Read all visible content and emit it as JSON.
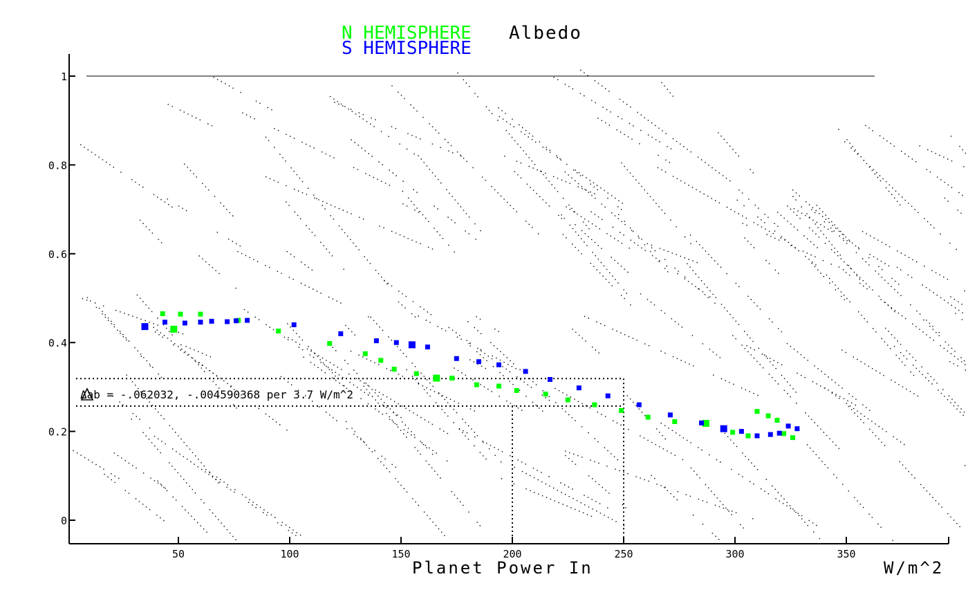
{
  "chart_data": {
    "type": "scatter",
    "title": "Albedo",
    "xlabel": "Planet Power In",
    "xunit": "W/m^2",
    "ylabel": "",
    "xlim": [
      0,
      395
    ],
    "ylim": [
      -0.05,
      1.05
    ],
    "x_ticks": [
      50,
      100,
      150,
      200,
      250,
      300,
      350
    ],
    "x_tick_labels": [
      "50",
      "100",
      "150",
      "200",
      "250",
      "300",
      "350"
    ],
    "y_ticks": [
      0,
      0.2,
      0.4,
      0.6,
      0.8,
      1
    ],
    "y_tick_labels": [
      "0",
      "0.2",
      "0.4",
      "0.6",
      "0.8",
      "1"
    ],
    "grid": false,
    "legend_position": "top-center",
    "colors": {
      "n_hemisphere": "#00ff00",
      "s_hemisphere": "#0000ff",
      "background_marks": "#000000"
    },
    "series": [
      {
        "name": "N HEMISPHERE",
        "color": "#00ff00",
        "x": [
          42,
          50,
          59,
          47,
          76,
          94,
          117,
          133,
          140,
          146,
          156,
          165,
          172,
          183,
          193,
          201,
          214,
          224,
          236,
          248,
          260,
          272,
          286,
          298,
          305,
          309,
          314,
          318,
          321,
          325
        ],
        "y": [
          0.465,
          0.464,
          0.464,
          0.43,
          0.45,
          0.426,
          0.398,
          0.375,
          0.36,
          0.34,
          0.33,
          0.32,
          0.32,
          0.305,
          0.302,
          0.292,
          0.284,
          0.271,
          0.26,
          0.247,
          0.232,
          0.222,
          0.218,
          0.198,
          0.19,
          0.245,
          0.235,
          0.225,
          0.195,
          0.186
        ]
      },
      {
        "name": "S HEMISPHERE",
        "color": "#0000ff",
        "x": [
          34,
          43,
          52,
          59,
          64,
          71,
          75,
          80,
          101,
          122,
          138,
          147,
          154,
          161,
          174,
          184,
          193,
          205,
          216,
          229,
          242,
          256,
          270,
          284,
          294,
          302,
          309,
          315,
          319,
          323,
          327
        ],
        "y": [
          0.436,
          0.446,
          0.444,
          0.446,
          0.448,
          0.447,
          0.449,
          0.45,
          0.44,
          0.42,
          0.404,
          0.4,
          0.395,
          0.39,
          0.364,
          0.357,
          0.35,
          0.335,
          0.317,
          0.298,
          0.28,
          0.26,
          0.237,
          0.219,
          0.206,
          0.2,
          0.19,
          0.193,
          0.196,
          0.212,
          0.206
        ]
      }
    ],
    "reference_lines": {
      "horizontal": [
        1.0,
        0.319,
        0.257
      ],
      "vertical": [
        200,
        250
      ]
    },
    "annotation": "Δab = -.062032, -.004590368 per 3.7 W/m^2"
  }
}
